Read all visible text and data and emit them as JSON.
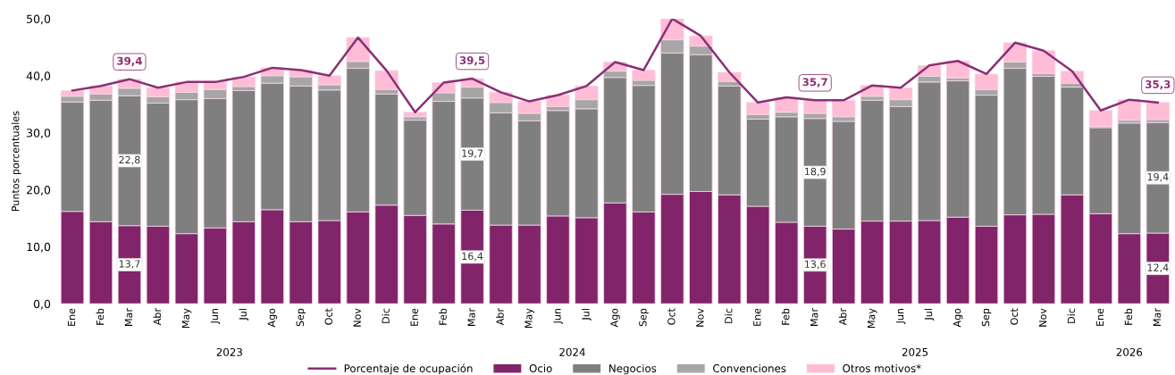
{
  "chart_data": {
    "type": "bar",
    "stacked": true,
    "ylabel": "Puntos porcentuales",
    "categories": [
      "Ene",
      "Feb",
      "Mar",
      "Abr",
      "May",
      "Jun",
      "Jul",
      "Ago",
      "Sep",
      "Oct",
      "Nov",
      "Dic",
      "Ene",
      "Feb",
      "Mar",
      "Abr",
      "May",
      "Jun",
      "Jul",
      "Ago",
      "Sep",
      "Oct",
      "Nov",
      "Dic",
      "Ene",
      "Feb",
      "Mar",
      "Abr",
      "May",
      "Jun",
      "Jul",
      "Ago",
      "Sep",
      "Oct",
      "Nov",
      "Dic",
      "Ene",
      "Feb",
      "Mar"
    ],
    "series": [
      {
        "name": "Porcentaje de ocupación",
        "type": "line",
        "color": "#8b2f75",
        "values": [
          37.4,
          38.2,
          39.4,
          37.9,
          38.9,
          38.9,
          39.8,
          41.4,
          41.0,
          40.0,
          46.7,
          40.9,
          33.6,
          38.8,
          39.5,
          37.1,
          35.5,
          36.6,
          38.2,
          42.4,
          41.0,
          50.0,
          47.0,
          40.6,
          35.3,
          36.2,
          35.7,
          35.7,
          38.3,
          37.9,
          41.8,
          42.6,
          40.3,
          45.8,
          44.4,
          40.8,
          33.9,
          35.8,
          35.3
        ],
        "value_labels": [
          null,
          null,
          "39,4",
          null,
          null,
          null,
          null,
          null,
          null,
          null,
          null,
          null,
          null,
          null,
          "39,5",
          null,
          null,
          null,
          null,
          null,
          null,
          null,
          null,
          null,
          null,
          null,
          "35,7",
          null,
          null,
          null,
          null,
          null,
          null,
          null,
          null,
          null,
          null,
          null,
          "35,3"
        ]
      },
      {
        "name": "Ocio",
        "color": "#82246a",
        "values": [
          16.2,
          14.4,
          13.7,
          13.6,
          12.3,
          13.3,
          14.4,
          16.5,
          14.4,
          14.6,
          16.1,
          17.3,
          15.5,
          14.0,
          16.4,
          13.8,
          13.8,
          15.4,
          15.1,
          17.7,
          16.1,
          19.2,
          19.7,
          19.1,
          17.1,
          14.3,
          13.6,
          13.1,
          14.5,
          14.5,
          14.6,
          15.2,
          13.6,
          15.6,
          15.7,
          19.1,
          15.8,
          12.3,
          12.4
        ],
        "value_labels": [
          null,
          null,
          "13,7",
          null,
          null,
          null,
          null,
          null,
          null,
          null,
          null,
          null,
          null,
          null,
          "16,4",
          null,
          null,
          null,
          null,
          null,
          null,
          null,
          null,
          null,
          null,
          null,
          "13,6",
          null,
          null,
          null,
          null,
          null,
          null,
          null,
          null,
          null,
          null,
          null,
          "12,4"
        ]
      },
      {
        "name": "Negocios",
        "color": "#7f7f7f",
        "values": [
          19.2,
          21.3,
          22.8,
          21.6,
          23.5,
          22.7,
          23.0,
          22.2,
          23.8,
          22.9,
          25.2,
          19.5,
          16.7,
          21.5,
          19.7,
          19.7,
          18.3,
          18.5,
          19.1,
          22.0,
          22.2,
          24.8,
          24.0,
          19.1,
          15.3,
          18.5,
          18.9,
          18.9,
          21.2,
          20.1,
          24.3,
          23.9,
          23.0,
          25.7,
          24.2,
          18.9,
          15.1,
          19.4,
          19.4
        ],
        "value_labels": [
          null,
          null,
          "22,8",
          null,
          null,
          null,
          null,
          null,
          null,
          null,
          null,
          null,
          null,
          null,
          "19,7",
          null,
          null,
          null,
          null,
          null,
          null,
          null,
          null,
          null,
          null,
          null,
          "18,9",
          null,
          null,
          null,
          null,
          null,
          null,
          null,
          null,
          null,
          null,
          null,
          "19,4"
        ]
      },
      {
        "name": "Convenciones",
        "color": "#a6a6a6",
        "values": [
          1.0,
          1.1,
          1.3,
          1.1,
          1.3,
          1.6,
          0.7,
          1.3,
          1.6,
          0.9,
          1.2,
          0.8,
          0.6,
          1.5,
          1.9,
          1.8,
          1.3,
          0.7,
          1.6,
          1.1,
          0.9,
          2.3,
          1.5,
          0.8,
          0.8,
          0.8,
          0.9,
          0.8,
          0.7,
          1.2,
          1.0,
          0.5,
          1.0,
          1.1,
          0.5,
          0.7,
          0.2,
          0.5,
          0.5
        ]
      },
      {
        "name": "Otros motivos*",
        "color": "#ffbcd6",
        "values": [
          1.0,
          1.4,
          1.6,
          1.6,
          1.8,
          1.3,
          1.7,
          1.4,
          1.2,
          1.6,
          4.2,
          3.3,
          0.8,
          1.8,
          1.5,
          1.8,
          2.1,
          2.0,
          2.4,
          1.6,
          1.8,
          3.7,
          1.8,
          1.6,
          2.1,
          2.6,
          2.3,
          2.9,
          1.9,
          2.1,
          1.9,
          3.0,
          2.7,
          3.4,
          4.0,
          2.1,
          2.8,
          3.6,
          3.0
        ]
      }
    ],
    "ylim": [
      0,
      50
    ],
    "yticks": [
      {
        "value": 0,
        "label": "0,0"
      },
      {
        "value": 10,
        "label": "10,0"
      },
      {
        "value": 20,
        "label": "20,0"
      },
      {
        "value": 30,
        "label": "30,0"
      },
      {
        "value": 40,
        "label": "40,0"
      },
      {
        "value": 50,
        "label": "50,0"
      }
    ],
    "annotations": [
      "2023",
      "2024",
      "2025",
      "2026"
    ],
    "legend": "bottom",
    "grid": false
  }
}
